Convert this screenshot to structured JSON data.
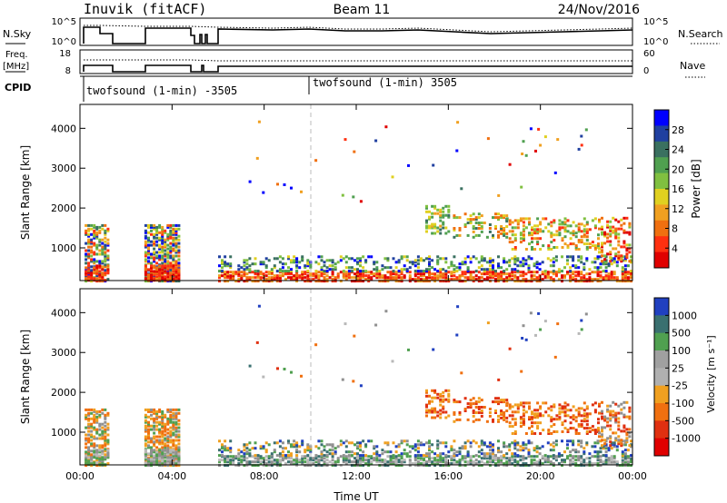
{
  "header": {
    "station": "Inuvik (fitACF)",
    "beam": "Beam 11",
    "date": "24/Nov/2016"
  },
  "strips": {
    "nsky_label": "N.Sky",
    "nsky_ticks": [
      "10^5",
      "10^0"
    ],
    "nsearch_label": "N.Search",
    "nsearch_ticks": [
      "10^5",
      "10^0"
    ],
    "freq_label_1": "Freq.",
    "freq_label_2": "[MHz]",
    "freq_ticks": [
      "18",
      "8"
    ],
    "nave_label": "Nave",
    "nave_ticks": [
      "60",
      "0"
    ],
    "cpid_label": "CPID",
    "cpid_segments": [
      "twofsound (1-min) -3505",
      "twofsound (1-min) 3505"
    ]
  },
  "chart_data": [
    {
      "type": "heatmap",
      "name": "power-panel",
      "ylabel": "Slant Range [km]",
      "ylim": [
        180,
        4600
      ],
      "yticks": [
        1000,
        2000,
        3000,
        4000
      ],
      "xlim": [
        0,
        24
      ],
      "colorbar": {
        "label": "Power [dB]",
        "ticks": [
          "28",
          "24",
          "20",
          "16",
          "12",
          "8",
          "4"
        ]
      }
    },
    {
      "type": "heatmap",
      "name": "velocity-panel",
      "ylabel": "Slant Range [km]",
      "ylim": [
        180,
        4600
      ],
      "yticks": [
        1000,
        2000,
        3000,
        4000
      ],
      "xlim": [
        0,
        24
      ],
      "xticks": [
        "00:00",
        "04:00",
        "08:00",
        "12:00",
        "16:00",
        "20:00",
        "00:00"
      ],
      "xlabel": "Time UT",
      "colorbar": {
        "label": "Velocity [m s⁻¹]",
        "ticks": [
          "1000",
          "500",
          "100",
          "25",
          "-25",
          "-100",
          "-500",
          "-1000"
        ]
      }
    }
  ],
  "colors": {
    "power_scale": [
      "#0000ff",
      "#2040a0",
      "#3a7060",
      "#50a050",
      "#80c040",
      "#e0d020",
      "#f0a020",
      "#f07010",
      "#ff3010",
      "#e00000"
    ],
    "velocity_scale": [
      "#2040c0",
      "#3a7070",
      "#50a050",
      "#a0a0a0",
      "#b0b0b0",
      "#f0a020",
      "#f07010",
      "#e03010",
      "#e00000"
    ]
  }
}
